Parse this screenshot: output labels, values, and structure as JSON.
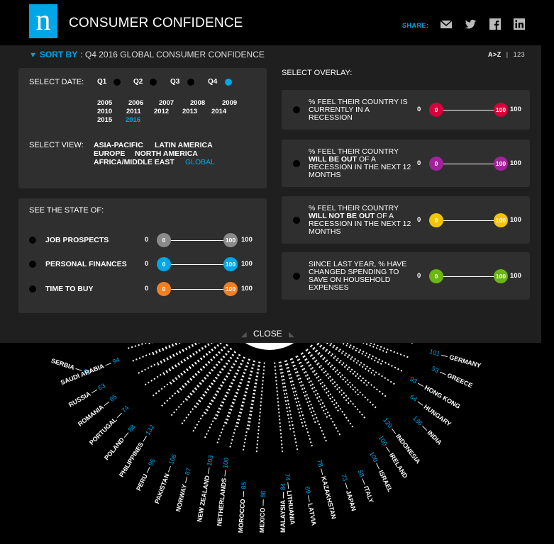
{
  "header": {
    "title": "CONSUMER CONFIDENCE",
    "logo_letter": "n",
    "share_label": "SHARE:"
  },
  "share_icons": [
    "mail-icon",
    "twitter-icon",
    "facebook-icon",
    "linkedin-icon"
  ],
  "sort": {
    "label": "SORT BY",
    "value": ": Q4 2016 GLOBAL CONSUMER CONFIDENCE",
    "az": "A>Z",
    "sep": "|",
    "num": "123"
  },
  "date": {
    "label": "SELECT DATE:",
    "quarters": [
      "Q1",
      "Q2",
      "Q3",
      "Q4"
    ],
    "active_quarter": "Q4",
    "years_row1": [
      "2005",
      "2006",
      "2007",
      "2008",
      "2009"
    ],
    "years_row2": [
      "2010",
      "2011",
      "2012",
      "2013",
      "2014"
    ],
    "years_row3": [
      "2015",
      "2016"
    ],
    "active_year": "2016"
  },
  "view": {
    "label": "SELECT VIEW:",
    "regions": [
      "ASIA-PACIFIC",
      "LATIN AMERICA",
      "EUROPE",
      "NORTH AMERICA",
      "AFRICA/MIDDLE EAST",
      "GLOBAL"
    ],
    "active": "GLOBAL"
  },
  "state": {
    "label": "SEE THE STATE OF:",
    "items": [
      {
        "label": "JOB PROSPECTS",
        "min": "0",
        "max": "100",
        "knob_min": "0",
        "knob_max": "100",
        "color": "#8a8a8a"
      },
      {
        "label": "PERSONAL FINANCES",
        "min": "0",
        "max": "100",
        "knob_min": "0",
        "knob_max": "100",
        "color": "#00a6e6"
      },
      {
        "label": "TIME TO BUY",
        "min": "0",
        "max": "100",
        "knob_min": "0",
        "knob_max": "100",
        "color": "#f47f20"
      }
    ]
  },
  "overlay": {
    "label": "SELECT OVERLAY:",
    "items": [
      {
        "pre": "% FEEL THEIR COUNTRY IS CURRENTLY IN A RECESSION",
        "bold": "",
        "post": "",
        "min": "0",
        "max": "100",
        "knob_min": "0",
        "knob_max": "100",
        "color": "#d6003a"
      },
      {
        "pre": "% FEEL THEIR COUNTRY ",
        "bold": "WILL BE OUT",
        "post": " OF A RECESSION IN THE NEXT 12 MONTHS",
        "min": "0",
        "max": "100",
        "knob_min": "0",
        "knob_max": "100",
        "color": "#a0239c"
      },
      {
        "pre": "% FEEL THEIR COUNTRY ",
        "bold": "WILL NOT BE OUT",
        "post": " OF A RECESSION IN THE NEXT 12 MONTHS",
        "min": "0",
        "max": "100",
        "knob_min": "0",
        "knob_max": "100",
        "color": "#f2c500"
      },
      {
        "pre": "SINCE LAST YEAR, % HAVE CHANGED SPENDING TO SAVE ON HOUSEHOLD EXPENSES",
        "bold": "",
        "post": "",
        "min": "0",
        "max": "100",
        "knob_min": "0",
        "knob_max": "100",
        "color": "#6ab70e"
      }
    ]
  },
  "close_label": "CLOSE",
  "countries_left": [
    {
      "name": "SERBIA",
      "value": "69"
    },
    {
      "name": "SAUDI ARABIA",
      "value": "94"
    },
    {
      "name": "RUSSIA",
      "value": "63"
    },
    {
      "name": "ROMANIA",
      "value": "85"
    },
    {
      "name": "PORTUGAL",
      "value": "74"
    },
    {
      "name": "POLAND",
      "value": "88"
    },
    {
      "name": "PHILIPPINES",
      "value": "132"
    },
    {
      "name": "PERU",
      "value": "96"
    },
    {
      "name": "PAKISTAN",
      "value": "106"
    },
    {
      "name": "NORWAY",
      "value": "87"
    },
    {
      "name": "NEW ZEALAND",
      "value": "103"
    },
    {
      "name": "NETHERLANDS",
      "value": "100"
    },
    {
      "name": "MOROCCO",
      "value": "85"
    },
    {
      "name": "MEXICO",
      "value": "86"
    },
    {
      "name": "MALAYSIA",
      "value": "84"
    }
  ],
  "countries_right": [
    {
      "name": "GERMANY",
      "value": "101"
    },
    {
      "name": "GREECE",
      "value": "53"
    },
    {
      "name": "HONG KONG",
      "value": "93"
    },
    {
      "name": "HUNGARY",
      "value": "64"
    },
    {
      "name": "INDIA",
      "value": "136"
    },
    {
      "name": "INDONESIA",
      "value": "120"
    },
    {
      "name": "IRELAND",
      "value": "100"
    },
    {
      "name": "ISRAEL",
      "value": "100"
    },
    {
      "name": "ITALY",
      "value": "58"
    },
    {
      "name": "JAPAN",
      "value": "73"
    },
    {
      "name": "KAZAKHSTAN",
      "value": "78"
    },
    {
      "name": "LATVIA",
      "value": "69"
    },
    {
      "name": "LITHUANIA",
      "value": "74"
    }
  ]
}
